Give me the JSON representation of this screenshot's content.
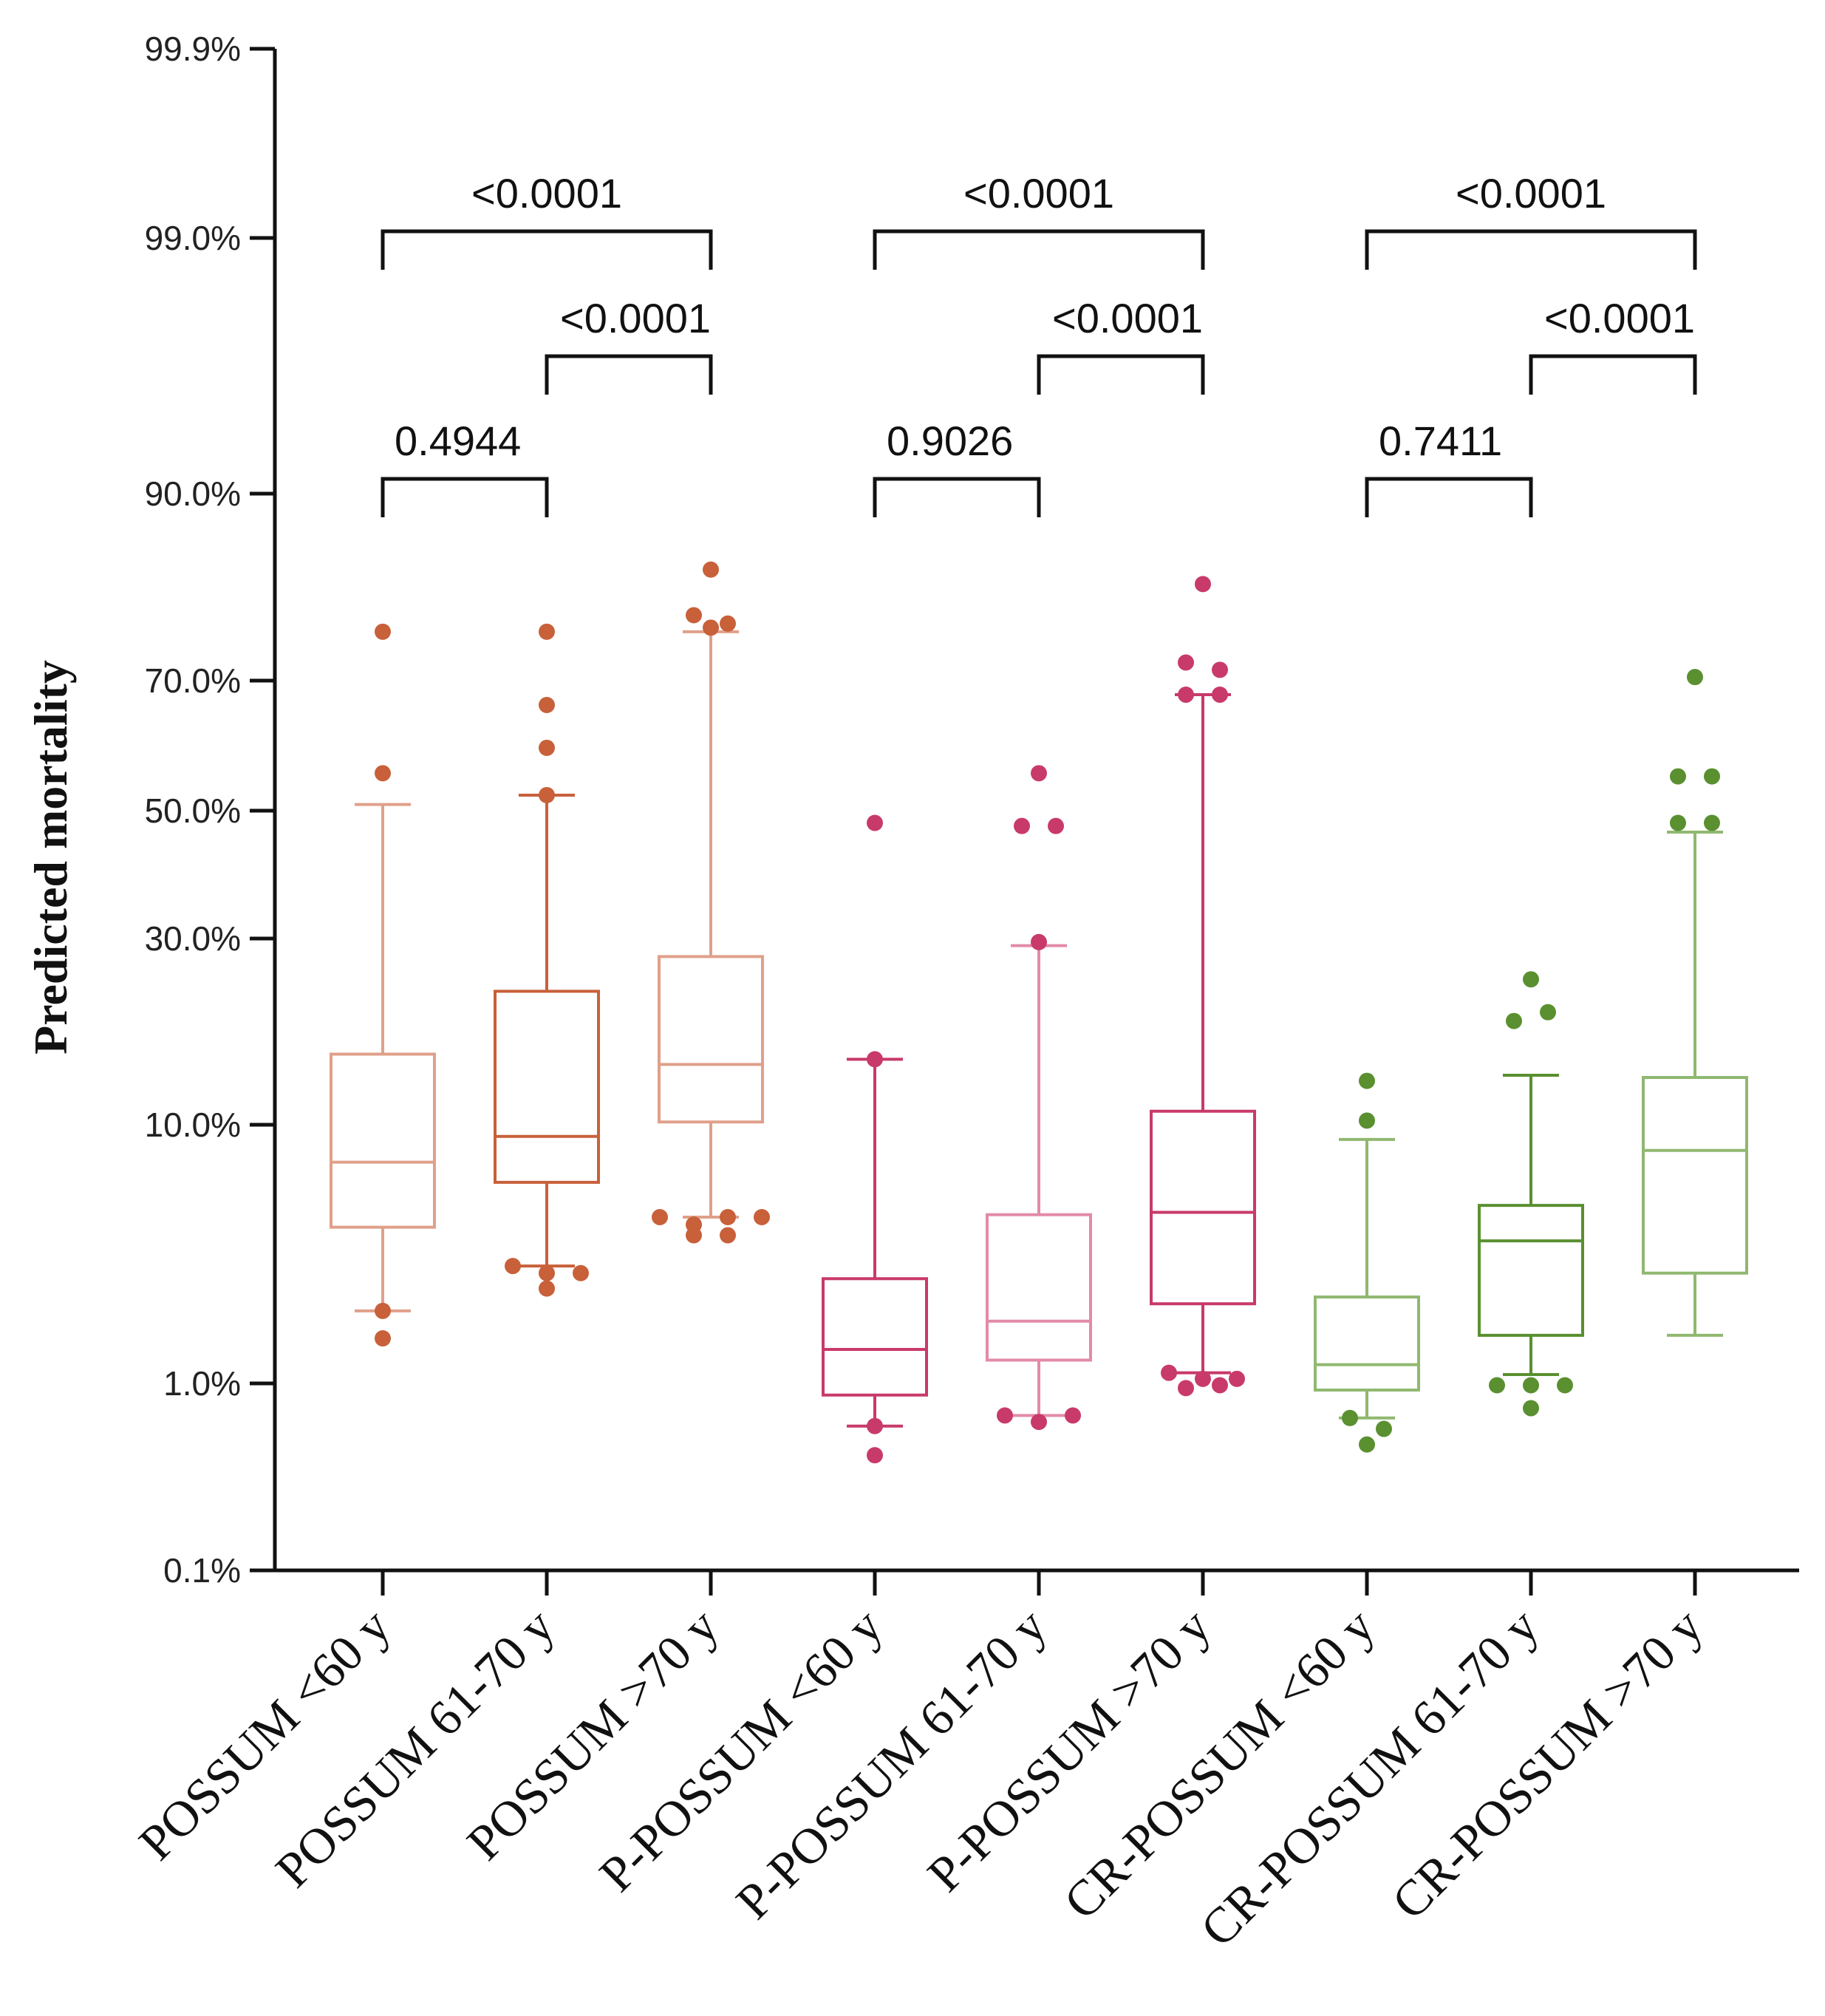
{
  "chart_data": {
    "type": "boxplot",
    "title": "",
    "xlabel": "",
    "ylabel": "Predicted mortality",
    "yscale": "probit",
    "ylim": [
      0.1,
      99.9
    ],
    "y_ticks": [
      {
        "value": 99.9,
        "label": "99.9%"
      },
      {
        "value": 99.0,
        "label": "99.0%"
      },
      {
        "value": 90.0,
        "label": "90.0%"
      },
      {
        "value": 70.0,
        "label": "70.0%"
      },
      {
        "value": 50.0,
        "label": "50.0%"
      },
      {
        "value": 30.0,
        "label": "30.0%"
      },
      {
        "value": 10.0,
        "label": "10.0%"
      },
      {
        "value": 1.0,
        "label": "1.0%"
      },
      {
        "value": 0.1,
        "label": "0.1%"
      }
    ],
    "colors": {
      "possum": "#c8603a",
      "possum_light": "#e0a08a",
      "p_possum": "#c83a6a",
      "p_possum_light": "#e38aa8",
      "cr_possum": "#5a9030",
      "cr_possum_light": "#90b870",
      "axis": "#111111"
    },
    "series": [
      {
        "name": "POSSUM <60 y",
        "group": "possum",
        "shade": "light",
        "whisker_low": 2.1,
        "q1": 4.5,
        "median": 7.6,
        "q3": 16.0,
        "whisker_high": 51.0,
        "outliers": [
          76.5,
          56.0,
          2.1,
          1.6
        ]
      },
      {
        "name": "POSSUM 61-70 y",
        "group": "possum",
        "shade": "dark",
        "whisker_low": 3.2,
        "q1": 6.5,
        "median": 9.2,
        "q3": 23.0,
        "whisker_high": 52.5,
        "outliers": [
          76.5,
          66.5,
          60.0,
          52.5,
          3.2,
          2.6,
          3.0,
          3.0
        ]
      },
      {
        "name": "POSSUM >70 y",
        "group": "possum",
        "shade": "light",
        "whisker_low": 4.9,
        "q1": 10.2,
        "median": 15.0,
        "q3": 27.5,
        "whisker_high": 76.5,
        "outliers": [
          83.5,
          78.5,
          77.5,
          77.0,
          4.9,
          4.6,
          4.9,
          4.9,
          4.2,
          4.2
        ]
      },
      {
        "name": "P-POSSUM <60 y",
        "group": "p_possum",
        "shade": "dark",
        "whisker_low": 0.62,
        "q1": 0.88,
        "median": 1.43,
        "q3": 2.85,
        "whisker_high": 15.5,
        "outliers": [
          48.0,
          15.5,
          0.62,
          0.44
        ]
      },
      {
        "name": "P-POSSUM 61-70 y",
        "group": "p_possum",
        "shade": "light",
        "whisker_low": 0.7,
        "q1": 1.28,
        "median": 1.9,
        "q3": 5.0,
        "whisker_high": 29.0,
        "outliers": [
          56.0,
          47.5,
          47.5,
          29.5,
          0.7,
          0.65,
          0.7
        ]
      },
      {
        "name": "P-POSSUM >70 y",
        "group": "p_possum",
        "shade": "dark",
        "whisker_low": 1.12,
        "q1": 2.25,
        "median": 5.1,
        "q3": 11.0,
        "whisker_high": 68.0,
        "outliers": [
          82.0,
          72.5,
          71.5,
          68.0,
          68.0,
          1.12,
          0.95,
          1.05,
          0.98,
          1.05
        ]
      },
      {
        "name": "CR-POSSUM <60 y",
        "group": "cr_possum",
        "shade": "light",
        "whisker_low": 0.68,
        "q1": 0.93,
        "median": 1.22,
        "q3": 2.4,
        "whisker_high": 9.0,
        "outliers": [
          13.5,
          10.3,
          0.68,
          0.6,
          0.5
        ]
      },
      {
        "name": "CR-POSSUM 61-70 y",
        "group": "cr_possum",
        "shade": "dark",
        "whisker_low": 1.1,
        "q1": 1.65,
        "median": 4.0,
        "q3": 5.4,
        "whisker_high": 14.0,
        "outliers": [
          24.5,
          19.5,
          20.5,
          0.98,
          0.98,
          0.98,
          0.76
        ]
      },
      {
        "name": "CR-POSSUM >70 y",
        "group": "cr_possum",
        "shade": "light",
        "whisker_low": 1.65,
        "q1": 3.0,
        "median": 8.3,
        "q3": 13.8,
        "whisker_high": 46.5,
        "outliers": [
          70.5,
          55.5,
          55.5,
          48.0,
          48.0
        ]
      }
    ],
    "comparisons": [
      {
        "from": 0,
        "to": 2,
        "level": 3,
        "label": "<0.0001"
      },
      {
        "from": 1,
        "to": 2,
        "level": 2,
        "label": "<0.0001"
      },
      {
        "from": 0,
        "to": 1,
        "level": 1,
        "label": "0.4944"
      },
      {
        "from": 3,
        "to": 5,
        "level": 3,
        "label": "<0.0001"
      },
      {
        "from": 4,
        "to": 5,
        "level": 2,
        "label": "<0.0001"
      },
      {
        "from": 3,
        "to": 4,
        "level": 1,
        "label": "0.9026"
      },
      {
        "from": 6,
        "to": 8,
        "level": 3,
        "label": "<0.0001"
      },
      {
        "from": 7,
        "to": 8,
        "level": 2,
        "label": "<0.0001"
      },
      {
        "from": 6,
        "to": 7,
        "level": 1,
        "label": "0.7411"
      }
    ]
  }
}
